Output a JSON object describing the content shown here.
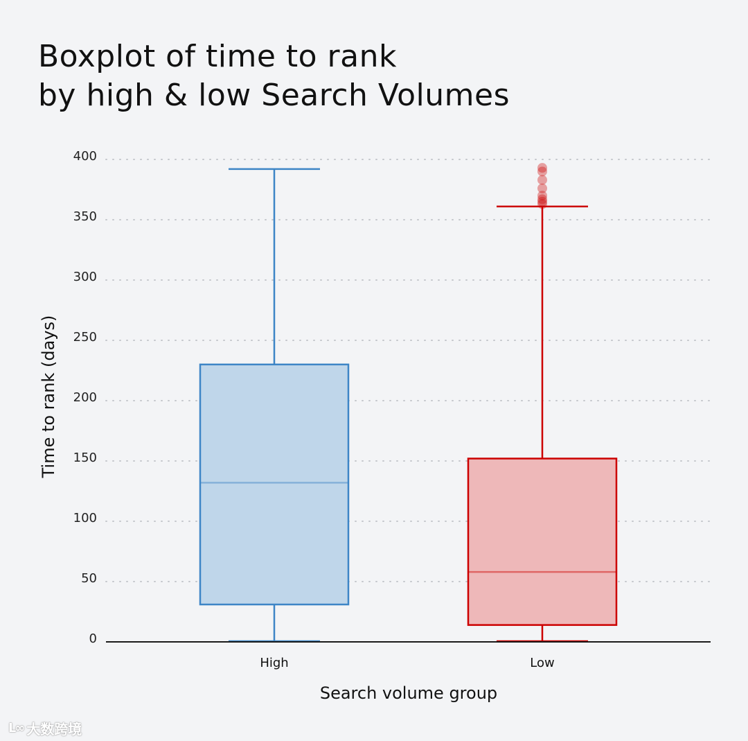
{
  "title_line1": "Boxplot of time to rank",
  "title_line2": "by high & low Search Volumes",
  "watermark": "大数跨境",
  "chart_data": {
    "type": "boxplot",
    "title": "Boxplot of time to rank by high & low Search Volumes",
    "xlabel": "Search volume group",
    "ylabel": "Time to rank (days)",
    "ylim": [
      0,
      400
    ],
    "yticks": [
      0,
      50,
      100,
      150,
      200,
      250,
      300,
      350,
      400
    ],
    "grid": "horizontal dotted",
    "categories": [
      "High",
      "Low"
    ],
    "boxes": [
      {
        "name": "High",
        "min": 0,
        "q1": 31,
        "median": 132,
        "q3": 230,
        "max": 392,
        "outliers": [],
        "color": "#3d85c6",
        "fill": "#bfd6ea"
      },
      {
        "name": "Low",
        "min": 0,
        "q1": 14,
        "median": 58,
        "q3": 152,
        "max": 361,
        "outliers": [
          363,
          365,
          367,
          370,
          376,
          383,
          390,
          393
        ],
        "color": "#cc0000",
        "fill": "#eeb8b9"
      }
    ]
  }
}
